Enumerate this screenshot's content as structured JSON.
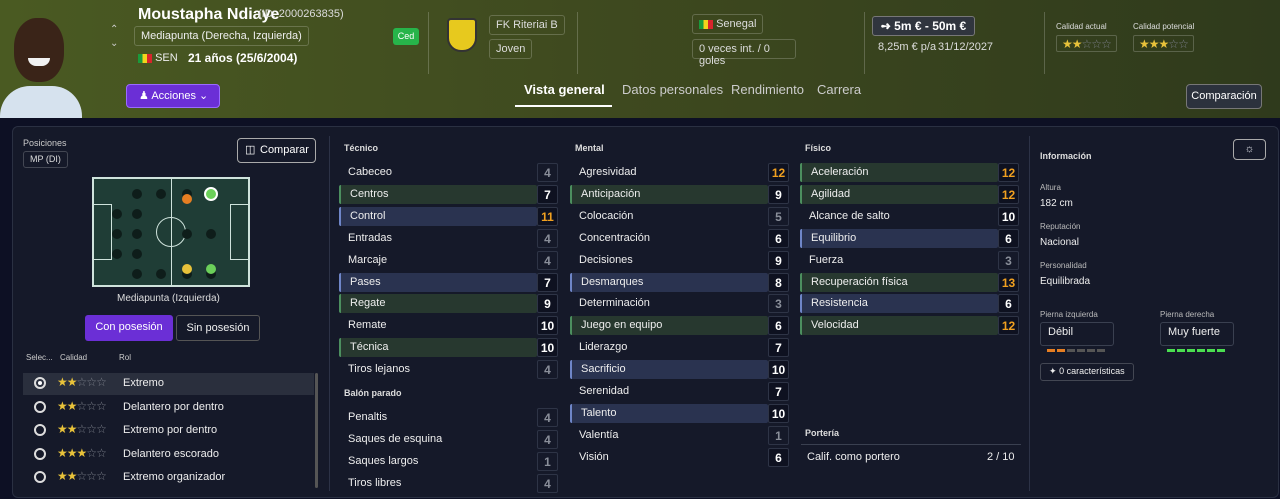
{
  "player": {
    "name": "Moustapha Ndiaye",
    "id": "(ID: 2000263835)",
    "position": "Mediapunta (Derecha, Izquierda)",
    "nationality_code": "SEN",
    "age": "21 años (25/6/2004)",
    "loan_badge": "Ced",
    "actions_label": "Acciones"
  },
  "club": {
    "name": "FK Riteriai B",
    "squad": "Joven"
  },
  "country": {
    "name": "Senegal",
    "intl": "0 veces int. / 0 goles"
  },
  "value": {
    "range": "5m € - 50m €",
    "wage": "8,25m € p/a",
    "contract": "31/12/2027"
  },
  "ratings": {
    "current_label": "Calidad actual",
    "potential_label": "Calidad potencial",
    "current_stars": 1.5,
    "potential_stars": 2.5
  },
  "tabs": [
    "Vista general",
    "Datos personales",
    "Rendimiento",
    "Carrera"
  ],
  "compare_top": "Comparación",
  "left": {
    "positions_label": "Posiciones",
    "position_badge": "MP (DI)",
    "compare_label": "Comparar",
    "pitch_caption": "Mediapunta (Izquierda)",
    "toggle_on": "Con posesión",
    "toggle_off": "Sin posesión",
    "cols": {
      "select": "Selec...",
      "quality": "Calidad",
      "role": "Rol"
    },
    "roles": [
      {
        "name": "Extremo",
        "stars": 1.5,
        "selected": true
      },
      {
        "name": "Delantero por dentro",
        "stars": 1.5,
        "selected": false
      },
      {
        "name": "Extremo por dentro",
        "stars": 1.5,
        "selected": false
      },
      {
        "name": "Delantero escorado",
        "stars": 2.5,
        "selected": false
      },
      {
        "name": "Extremo organizador",
        "stars": 2,
        "selected": false
      }
    ]
  },
  "technical": {
    "title": "Técnico",
    "attrs": [
      {
        "name": "Cabeceo",
        "value": 4
      },
      {
        "name": "Centros",
        "value": 7
      },
      {
        "name": "Control",
        "value": 11
      },
      {
        "name": "Entradas",
        "value": 4
      },
      {
        "name": "Marcaje",
        "value": 4
      },
      {
        "name": "Pases",
        "value": 7
      },
      {
        "name": "Regate",
        "value": 9
      },
      {
        "name": "Remate",
        "value": 10
      },
      {
        "name": "Técnica",
        "value": 10
      },
      {
        "name": "Tiros lejanos",
        "value": 4
      }
    ]
  },
  "setpieces": {
    "title": "Balón parado",
    "attrs": [
      {
        "name": "Penaltis",
        "value": 4
      },
      {
        "name": "Saques de esquina",
        "value": 4
      },
      {
        "name": "Saques largos",
        "value": 1
      },
      {
        "name": "Tiros libres",
        "value": 4
      }
    ]
  },
  "mental": {
    "title": "Mental",
    "attrs": [
      {
        "name": "Agresividad",
        "value": 12
      },
      {
        "name": "Anticipación",
        "value": 9
      },
      {
        "name": "Colocación",
        "value": 5
      },
      {
        "name": "Concentración",
        "value": 6
      },
      {
        "name": "Decisiones",
        "value": 9
      },
      {
        "name": "Desmarques",
        "value": 8
      },
      {
        "name": "Determinación",
        "value": 3
      },
      {
        "name": "Juego en equipo",
        "value": 6
      },
      {
        "name": "Liderazgo",
        "value": 7
      },
      {
        "name": "Sacrificio",
        "value": 10
      },
      {
        "name": "Serenidad",
        "value": 7
      },
      {
        "name": "Talento",
        "value": 10
      },
      {
        "name": "Valentía",
        "value": 1
      },
      {
        "name": "Visión",
        "value": 6
      }
    ]
  },
  "physical": {
    "title": "Físico",
    "attrs": [
      {
        "name": "Aceleración",
        "value": 12
      },
      {
        "name": "Agilidad",
        "value": 12
      },
      {
        "name": "Alcance de salto",
        "value": 10
      },
      {
        "name": "Equilibrio",
        "value": 6
      },
      {
        "name": "Fuerza",
        "value": 3
      },
      {
        "name": "Recuperación física",
        "value": 13
      },
      {
        "name": "Resistencia",
        "value": 6
      },
      {
        "name": "Velocidad",
        "value": 12
      }
    ]
  },
  "goalkeeping": {
    "title": "Portería",
    "label": "Calif. como portero",
    "value": "2 / 10"
  },
  "info": {
    "title": "Información",
    "height_label": "Altura",
    "height": "182 cm",
    "rep_label": "Reputación",
    "rep": "Nacional",
    "pers_label": "Personalidad",
    "pers": "Equilibrada",
    "left_label": "Pierna izquierda",
    "left": "Débil",
    "left_level": 2,
    "right_label": "Pierna derecha",
    "right": "Muy fuerte",
    "right_level": 6,
    "traits": "0 características"
  }
}
